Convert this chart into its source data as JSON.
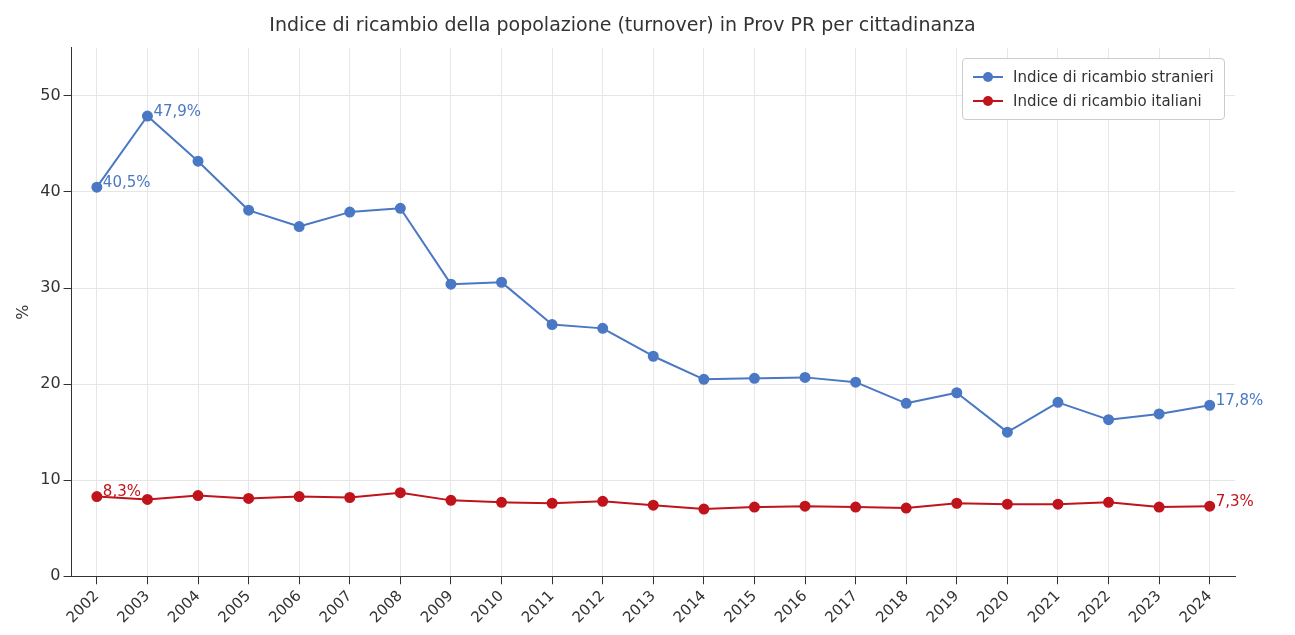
{
  "chart_data": {
    "type": "line",
    "title": "Indice di ricambio della popolazione (turnover) in Prov PR per cittadinanza",
    "ylabel": "%",
    "categories": [
      "2002",
      "2003",
      "2004",
      "2005",
      "2006",
      "2007",
      "2008",
      "2009",
      "2010",
      "2011",
      "2012",
      "2013",
      "2014",
      "2015",
      "2016",
      "2017",
      "2018",
      "2019",
      "2020",
      "2021",
      "2022",
      "2023",
      "2024"
    ],
    "series": [
      {
        "name": "Indice di ricambio stranieri",
        "color": "#4a78c4",
        "values": [
          40.5,
          47.9,
          43.2,
          38.1,
          36.4,
          37.9,
          38.3,
          30.4,
          30.6,
          26.2,
          25.8,
          22.9,
          20.5,
          20.6,
          20.7,
          20.2,
          18.0,
          19.1,
          15.0,
          18.1,
          16.3,
          16.9,
          17.8
        ],
        "value_labels": [
          "40,5%",
          "47,9%",
          null,
          null,
          null,
          null,
          null,
          null,
          null,
          null,
          null,
          null,
          null,
          null,
          null,
          null,
          null,
          null,
          null,
          null,
          null,
          null,
          "17,8%"
        ]
      },
      {
        "name": "Indice di ricambio italiani",
        "color": "#c0141c",
        "values": [
          8.3,
          8.0,
          8.4,
          8.1,
          8.3,
          8.2,
          8.7,
          7.9,
          7.7,
          7.6,
          7.8,
          7.4,
          7.0,
          7.2,
          7.3,
          7.2,
          7.1,
          7.6,
          7.5,
          7.5,
          7.7,
          7.2,
          7.3
        ],
        "value_labels": [
          "8,3%",
          null,
          null,
          null,
          null,
          null,
          null,
          null,
          null,
          null,
          null,
          null,
          null,
          null,
          null,
          null,
          null,
          null,
          null,
          null,
          null,
          null,
          "7,3%"
        ]
      }
    ],
    "ylim": [
      0,
      55
    ],
    "yticks": [
      0,
      10,
      20,
      30,
      40,
      50
    ],
    "grid": true,
    "legend": "top right",
    "marker": "circle",
    "line_style": "solid"
  }
}
